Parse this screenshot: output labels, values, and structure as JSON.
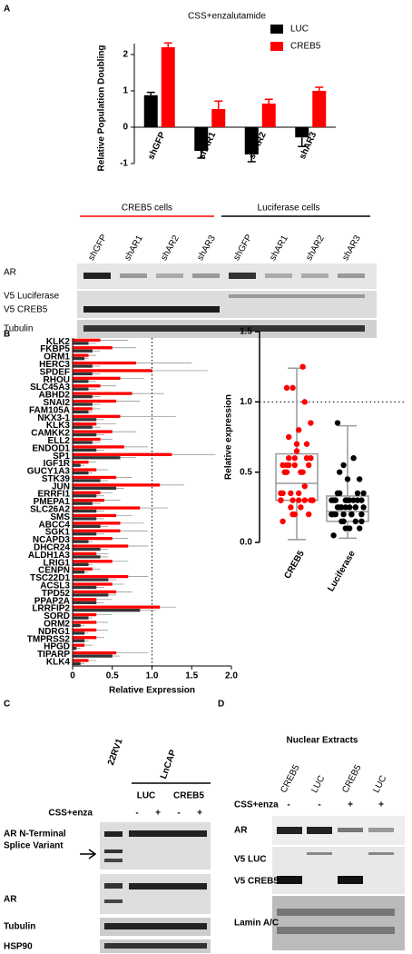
{
  "panel_labels": [
    "A",
    "B",
    "C",
    "D"
  ],
  "chart_data": [
    {
      "type": "bar",
      "title": "CSS+enzalutamide",
      "y_label": "Relative Population  Doubling",
      "categories": [
        "shGFP",
        "shAR1",
        "shAR2",
        "shAR3"
      ],
      "series": [
        {
          "name": "LUC",
          "color": "#000000",
          "values": [
            0.88,
            -0.65,
            -0.75,
            -0.28
          ],
          "errors": [
            0.08,
            0.2,
            0.2,
            0.25
          ]
        },
        {
          "name": "CREB5",
          "color": "#ff0000",
          "values": [
            2.2,
            0.5,
            0.65,
            1.0
          ],
          "errors": [
            0.12,
            0.22,
            0.12,
            0.1
          ]
        }
      ],
      "ylim": [
        -1,
        2.3
      ],
      "yticks": [
        -1,
        0,
        1,
        2
      ]
    },
    {
      "type": "hbar",
      "x_label": "Relative Expression",
      "categories": [
        "KLK2",
        "FKBP5",
        "ORM1",
        "HERC3",
        "SPDEF",
        "RHOU",
        "SLC45A3",
        "ABHD2",
        "SNAI2",
        "FAM105A",
        "NKX3-1",
        "KLK3",
        "CAMKK2",
        "ELL2",
        "ENDOD1",
        "SP1",
        "IGF1R",
        "GUCY1A3",
        "STK39",
        "JUN",
        "ERRFI1",
        "PMEPA1",
        "SLC26A2",
        "SMS",
        "ABCC4",
        "SGK1",
        "NCAPD3",
        "DHCR24",
        "ALDH1A3",
        "LRIG1",
        "CENPN",
        "TSC22D1",
        "ACSL3",
        "TPD52",
        "PPAP2A",
        "LRRFIP2",
        "SORD",
        "ORM2",
        "NDRG1",
        "TMPRSS2",
        "HPGD",
        "TIPARP",
        "KLK4"
      ],
      "series": [
        {
          "color": "#ff0000",
          "values": [
            0.35,
            0.5,
            0.2,
            0.8,
            1.0,
            0.6,
            0.35,
            0.75,
            0.55,
            0.25,
            0.6,
            0.3,
            0.5,
            0.35,
            0.65,
            1.25,
            0.2,
            0.3,
            0.55,
            1.1,
            0.35,
            0.4,
            0.85,
            0.55,
            0.6,
            0.6,
            0.5,
            0.7,
            0.3,
            0.5,
            0.25,
            0.7,
            0.5,
            0.55,
            0.3,
            1.1,
            0.3,
            0.3,
            0.3,
            0.3,
            0.15,
            0.55,
            0.2
          ],
          "errors": [
            0.35,
            0.3,
            0.1,
            0.7,
            0.7,
            0.3,
            0.2,
            0.4,
            0.3,
            0.1,
            0.7,
            0.25,
            0.3,
            0.15,
            0.3,
            0.55,
            0.1,
            0.15,
            0.2,
            0.3,
            0.15,
            0.2,
            0.35,
            0.2,
            0.3,
            0.35,
            0.2,
            0.25,
            0.15,
            0.2,
            0.1,
            0.25,
            0.15,
            0.2,
            0.2,
            0.2,
            0.2,
            0.15,
            0.15,
            0.1,
            0.1,
            0.4,
            0.1
          ]
        },
        {
          "color": "#333333",
          "values": [
            0.2,
            0.25,
            0.15,
            0.25,
            0.25,
            0.2,
            0.2,
            0.25,
            0.25,
            0.2,
            0.3,
            0.25,
            0.3,
            0.25,
            0.3,
            0.6,
            0.1,
            0.2,
            0.35,
            0.55,
            0.3,
            0.25,
            0.3,
            0.3,
            0.35,
            0.3,
            0.2,
            0.35,
            0.35,
            0.2,
            0.15,
            0.45,
            0.3,
            0.45,
            0.3,
            0.85,
            0.2,
            0.1,
            0.15,
            0.15,
            0.05,
            0.5,
            0.1
          ],
          "errors": [
            0.1,
            0.1,
            0.05,
            0.1,
            0.1,
            0.1,
            0.1,
            0.1,
            0.1,
            0.05,
            0.1,
            0.1,
            0.1,
            0.1,
            0.1,
            0.2,
            0.05,
            0.05,
            0.1,
            0.1,
            0.1,
            0.1,
            0.1,
            0.1,
            0.1,
            0.1,
            0.05,
            0.1,
            0.1,
            0.05,
            0.05,
            0.1,
            0.1,
            0.1,
            0.1,
            0.2,
            0.05,
            0.05,
            0.05,
            0.05,
            0.05,
            0.1,
            0.05
          ]
        }
      ],
      "xlim": [
        0,
        2.0
      ],
      "xticks": [
        0,
        0.5,
        {
          "value": 1,
          "label": "1.0"
        },
        1.5,
        {
          "value": 2,
          "label": "2.0"
        }
      ],
      "reference_line": 1
    },
    {
      "type": "box",
      "y_label": "Relative expression",
      "categories": [
        "CREB5",
        "Luciferase"
      ],
      "boxes": [
        {
          "min": 0.02,
          "q1": 0.3,
          "median": 0.42,
          "q3": 0.63,
          "max": 1.24,
          "color": "#ff0000"
        },
        {
          "min": 0.03,
          "q1": 0.15,
          "median": 0.22,
          "q3": 0.33,
          "max": 0.83,
          "color": "#000000"
        }
      ],
      "ylim": [
        0,
        1.5
      ],
      "yticks": [
        {
          "value": 0,
          "label": "0.0"
        },
        0.5,
        {
          "value": 1,
          "label": "1.0"
        },
        1.5
      ],
      "reference_line": 1
    }
  ],
  "panel_a_blot": {
    "groups": [
      "CREB5 cells",
      "Luciferase cells"
    ],
    "lanes": [
      "shGFP",
      "shAR1",
      "shAR2",
      "shAR3",
      "shGFP",
      "shAR1",
      "shAR2",
      "shAR3"
    ],
    "rows": [
      "AR",
      "V5 Luciferase",
      "V5 CREB5",
      "Tubulin"
    ]
  },
  "panel_c": {
    "cell_lines": [
      "22RV1",
      "LnCAP"
    ],
    "lanes": [
      "LUC",
      "CREB5"
    ],
    "treatment": "CSS+enza",
    "signs": [
      "-",
      "+",
      "-",
      "+"
    ],
    "splice_label": [
      "AR N-Terminal",
      "Splice Variant"
    ],
    "rows": [
      "AR",
      "Tubulin",
      "HSP90"
    ]
  },
  "panel_d": {
    "title": "Nuclear Extracts",
    "lanes": [
      "CREB5",
      "LUC",
      "CREB5",
      "LUC"
    ],
    "treatment": "CSS+enza",
    "signs": [
      "-",
      "-",
      "+",
      "+"
    ],
    "rows": [
      "AR",
      "V5 LUC",
      "V5 CREB5",
      "Lamin A/C"
    ]
  }
}
